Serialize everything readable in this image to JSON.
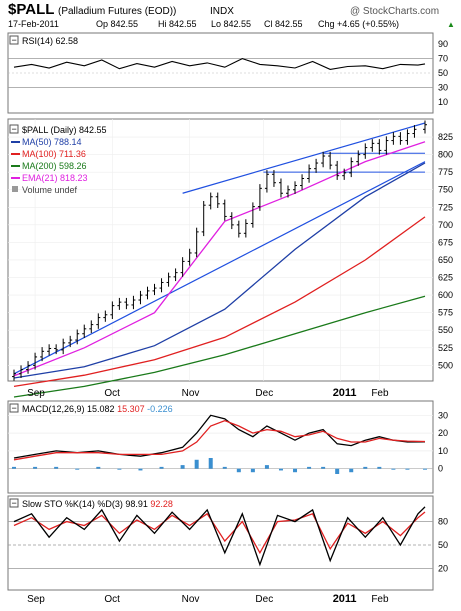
{
  "header": {
    "symbol": "$PALL",
    "name": "(Palladium Futures (EOD))",
    "exchange": "INDX",
    "watermark": "@ StockCharts.com",
    "date": "17-Feb-2011",
    "op": "Op 842.55",
    "hi": "Hi 842.55",
    "lo": "Lo 842.55",
    "cl": "Cl 842.55",
    "chg": "Chg +4.65 (+0.55%)",
    "chg_arrow": "▲"
  },
  "colors": {
    "price_bar": "#000000",
    "ma50": "#1f3fa6",
    "ma100": "#e02020",
    "ma200": "#1a7a1a",
    "ema21": "#e020e0",
    "trendline": "#2050e0",
    "macd": "#000000",
    "signal": "#e02020",
    "histogram": "#3a8fd0",
    "stoch_k": "#000000",
    "stoch_d": "#e02020",
    "rsi": "#000000",
    "rsi_overbought_fill": "#2e8b3e"
  },
  "chart_data": [
    {
      "type": "line",
      "panel": "rsi",
      "label": "RSI(14) 62.58",
      "ylim": [
        0,
        100
      ],
      "yticks": [
        10,
        30,
        50,
        70,
        90
      ],
      "reference_lines": [
        30,
        70
      ],
      "x": [
        0,
        5,
        10,
        15,
        20,
        25,
        30,
        35,
        40,
        45,
        50,
        55,
        60,
        65,
        70,
        75,
        80,
        85,
        90,
        95,
        100,
        105,
        110,
        115,
        117
      ],
      "values": [
        58,
        62,
        57,
        65,
        60,
        68,
        56,
        63,
        58,
        66,
        60,
        64,
        58,
        70,
        62,
        60,
        57,
        66,
        55,
        59,
        60,
        56,
        62,
        61,
        62.58
      ]
    },
    {
      "type": "line",
      "panel": "price",
      "label": "$PALL (Daily) 842.55",
      "ylim": [
        482,
        845
      ],
      "yticks": [
        500,
        525,
        550,
        575,
        600,
        625,
        650,
        675,
        700,
        725,
        750,
        775,
        800,
        825
      ],
      "x_labels": [
        {
          "x": 6,
          "label": "Sep"
        },
        {
          "x": 28,
          "label": "Oct"
        },
        {
          "x": 50,
          "label": "Nov"
        },
        {
          "x": 71,
          "label": "Dec"
        },
        {
          "x": 93,
          "label": "2011"
        },
        {
          "x": 104,
          "label": "Feb"
        }
      ],
      "ohlc_close": [
        {
          "x": 0,
          "c": 488
        },
        {
          "x": 2,
          "c": 494
        },
        {
          "x": 4,
          "c": 500
        },
        {
          "x": 6,
          "c": 512
        },
        {
          "x": 8,
          "c": 520
        },
        {
          "x": 10,
          "c": 524
        },
        {
          "x": 12,
          "c": 522
        },
        {
          "x": 14,
          "c": 532
        },
        {
          "x": 16,
          "c": 536
        },
        {
          "x": 18,
          "c": 545
        },
        {
          "x": 20,
          "c": 552
        },
        {
          "x": 22,
          "c": 558
        },
        {
          "x": 24,
          "c": 568
        },
        {
          "x": 26,
          "c": 572
        },
        {
          "x": 28,
          "c": 585
        },
        {
          "x": 30,
          "c": 590
        },
        {
          "x": 32,
          "c": 586
        },
        {
          "x": 34,
          "c": 593
        },
        {
          "x": 36,
          "c": 600
        },
        {
          "x": 38,
          "c": 606
        },
        {
          "x": 40,
          "c": 610
        },
        {
          "x": 42,
          "c": 618
        },
        {
          "x": 44,
          "c": 626
        },
        {
          "x": 46,
          "c": 632
        },
        {
          "x": 48,
          "c": 648
        },
        {
          "x": 50,
          "c": 660
        },
        {
          "x": 52,
          "c": 690
        },
        {
          "x": 54,
          "c": 728
        },
        {
          "x": 56,
          "c": 740
        },
        {
          "x": 58,
          "c": 730
        },
        {
          "x": 60,
          "c": 712
        },
        {
          "x": 62,
          "c": 700
        },
        {
          "x": 64,
          "c": 688
        },
        {
          "x": 66,
          "c": 702
        },
        {
          "x": 68,
          "c": 726
        },
        {
          "x": 70,
          "c": 752
        },
        {
          "x": 72,
          "c": 772
        },
        {
          "x": 74,
          "c": 760
        },
        {
          "x": 76,
          "c": 745
        },
        {
          "x": 78,
          "c": 750
        },
        {
          "x": 80,
          "c": 756
        },
        {
          "x": 82,
          "c": 766
        },
        {
          "x": 84,
          "c": 780
        },
        {
          "x": 86,
          "c": 788
        },
        {
          "x": 88,
          "c": 798
        },
        {
          "x": 90,
          "c": 785
        },
        {
          "x": 92,
          "c": 770
        },
        {
          "x": 94,
          "c": 774
        },
        {
          "x": 96,
          "c": 790
        },
        {
          "x": 98,
          "c": 800
        },
        {
          "x": 100,
          "c": 810
        },
        {
          "x": 102,
          "c": 816
        },
        {
          "x": 104,
          "c": 806
        },
        {
          "x": 106,
          "c": 820
        },
        {
          "x": 108,
          "c": 826
        },
        {
          "x": 110,
          "c": 820
        },
        {
          "x": 112,
          "c": 830
        },
        {
          "x": 114,
          "c": 836
        },
        {
          "x": 117,
          "c": 842.55
        }
      ],
      "series": [
        {
          "name": "MA(50) 788.14",
          "x": [
            0,
            20,
            40,
            60,
            80,
            100,
            117
          ],
          "values": [
            482,
            498,
            528,
            580,
            665,
            740,
            788.14
          ]
        },
        {
          "name": "MA(100) 711.36",
          "x": [
            0,
            20,
            40,
            60,
            80,
            100,
            117
          ],
          "values": [
            470,
            486,
            508,
            540,
            590,
            650,
            711.36
          ]
        },
        {
          "name": "MA(200) 598.26",
          "x": [
            0,
            20,
            40,
            60,
            80,
            100,
            117
          ],
          "values": [
            455,
            470,
            490,
            515,
            545,
            575,
            598.26
          ]
        },
        {
          "name": "EMA(21) 818.23",
          "x": [
            0,
            20,
            40,
            60,
            80,
            100,
            117
          ],
          "values": [
            485,
            525,
            575,
            705,
            745,
            790,
            818.23
          ]
        }
      ],
      "volume_label": "Volume undef"
    },
    {
      "type": "line",
      "panel": "macd",
      "label_parts": [
        "MACD(12,26,9)",
        "15.082",
        "15.307",
        "-0.226"
      ],
      "ylim": [
        -12,
        33
      ],
      "yticks": [
        0,
        10,
        20,
        30
      ],
      "x": [
        0,
        6,
        12,
        18,
        24,
        30,
        36,
        42,
        48,
        52,
        56,
        60,
        64,
        68,
        72,
        76,
        80,
        84,
        88,
        92,
        96,
        100,
        104,
        108,
        112,
        117
      ],
      "macd": [
        6,
        8,
        10,
        9,
        10,
        8,
        7,
        9,
        12,
        20,
        30,
        28,
        22,
        18,
        24,
        20,
        16,
        20,
        22,
        14,
        13,
        16,
        18,
        16,
        15,
        15.082
      ],
      "signal": [
        5,
        7,
        9,
        9,
        9,
        8,
        8,
        8,
        10,
        15,
        24,
        27,
        24,
        20,
        22,
        21,
        18,
        19,
        21,
        17,
        15,
        15,
        17,
        16,
        15.5,
        15.307
      ],
      "histogram": [
        1,
        1,
        1,
        0,
        1,
        0,
        -1,
        1,
        2,
        5,
        6,
        1,
        -2,
        -2,
        2,
        -1,
        -2,
        1,
        1,
        -3,
        -2,
        1,
        1,
        0,
        -0.5,
        -0.226
      ]
    },
    {
      "type": "line",
      "panel": "stochastic",
      "label_parts": [
        "Slow STO %K(14) %D(3)",
        "98.91",
        "92.28"
      ],
      "ylim": [
        0,
        100
      ],
      "yticks": [
        20,
        50,
        80
      ],
      "reference_lines": [
        20,
        50,
        80
      ],
      "x": [
        0,
        5,
        10,
        15,
        20,
        25,
        30,
        35,
        40,
        45,
        50,
        55,
        60,
        65,
        70,
        75,
        80,
        85,
        90,
        95,
        100,
        105,
        110,
        115,
        117
      ],
      "k": [
        80,
        90,
        60,
        85,
        70,
        95,
        55,
        88,
        65,
        92,
        70,
        95,
        40,
        90,
        25,
        88,
        80,
        95,
        30,
        85,
        60,
        85,
        50,
        90,
        98.91
      ],
      "d": [
        75,
        85,
        70,
        80,
        75,
        88,
        65,
        82,
        70,
        88,
        75,
        90,
        55,
        80,
        40,
        80,
        82,
        90,
        45,
        78,
        65,
        80,
        62,
        85,
        92.28
      ]
    }
  ]
}
